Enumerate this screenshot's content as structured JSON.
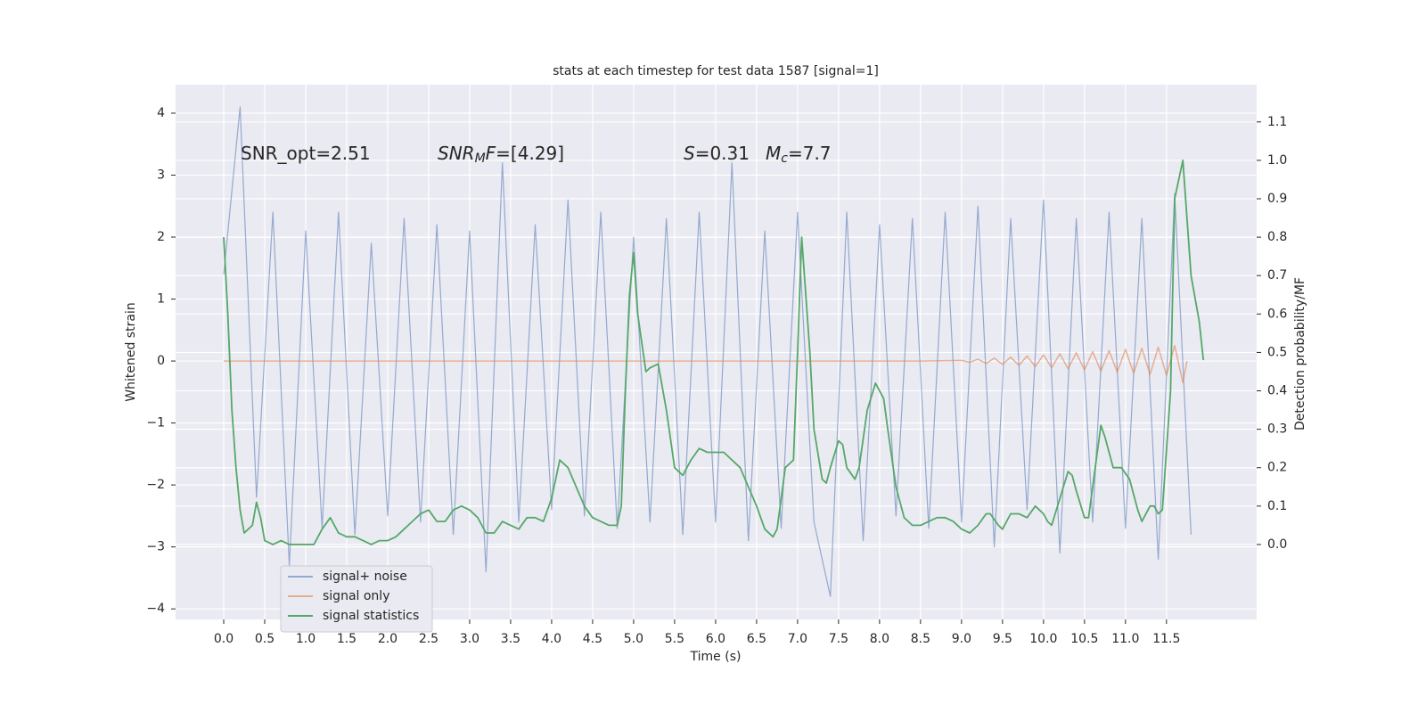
{
  "chart_data": {
    "type": "line",
    "title": "stats at each timestep for test data 1587 [signal=1]",
    "xlabel": "Time (s)",
    "ylabel": "Whitened strain",
    "y2label": "Detection probability/MF",
    "xlim": [
      -0.587,
      12.6
    ],
    "ylim": [
      -4.17,
      4.46
    ],
    "y2lim": [
      -0.195,
      1.197
    ],
    "xticks": [
      {
        "value": 0,
        "label": "0.0"
      },
      0.5,
      {
        "value": 1,
        "label": "1.0"
      },
      1.5,
      {
        "value": 2,
        "label": "2.0"
      },
      2.5,
      {
        "value": 3,
        "label": "3.0"
      },
      3.5,
      {
        "value": 4,
        "label": "4.0"
      },
      4.5,
      {
        "value": 5,
        "label": "5.0"
      },
      5.5,
      {
        "value": 6,
        "label": "6.0"
      },
      6.5,
      {
        "value": 7,
        "label": "7.0"
      },
      7.5,
      {
        "value": 8,
        "label": "8.0"
      },
      8.5,
      {
        "value": 9,
        "label": "9.0"
      },
      9.5,
      {
        "value": 10,
        "label": "10.0"
      },
      10.5,
      {
        "value": 11,
        "label": "11.0"
      },
      11.5
    ],
    "yticks": [
      {
        "value": -4,
        "label": "−4"
      },
      {
        "value": -3,
        "label": "−3"
      },
      {
        "value": -2,
        "label": "−2"
      },
      {
        "value": -1,
        "label": "−1"
      },
      0,
      1,
      2,
      3,
      4
    ],
    "y2ticks": [
      {
        "value": 0,
        "label": "0.0"
      },
      0.1,
      0.2,
      0.3,
      0.4,
      0.5,
      0.6,
      0.7,
      0.8,
      0.9,
      {
        "value": 1,
        "label": "1.0"
      },
      1.1
    ],
    "grid": true,
    "legend": "lower left",
    "annotations": [
      {
        "parts": [
          "SNR_opt=2.51"
        ]
      },
      {
        "parts": [
          "SNR",
          "M",
          "F",
          "=[4.29]"
        ]
      },
      {
        "parts": [
          "S",
          "=0.31"
        ]
      },
      {
        "parts": [
          "M",
          "c",
          "=7.7"
        ]
      }
    ],
    "series": [
      {
        "name": "signal+ noise",
        "color": "#4c72b0",
        "x": [
          0.0,
          0.2,
          0.4,
          0.6,
          0.8,
          1.0,
          1.2,
          1.4,
          1.6,
          1.8,
          2.0,
          2.2,
          2.4,
          2.6,
          2.8,
          3.0,
          3.2,
          3.4,
          3.6,
          3.8,
          4.0,
          4.2,
          4.4,
          4.6,
          4.8,
          5.0,
          5.2,
          5.4,
          5.6,
          5.8,
          6.0,
          6.2,
          6.4,
          6.6,
          6.8,
          7.0,
          7.2,
          7.4,
          7.6,
          7.8,
          8.0,
          8.2,
          8.4,
          8.6,
          8.8,
          9.0,
          9.2,
          9.4,
          9.6,
          9.8,
          10.0,
          10.2,
          10.4,
          10.6,
          10.8,
          11.0,
          11.2,
          11.4,
          11.6,
          11.8
        ],
        "values": [
          1.4,
          4.1,
          -2.2,
          2.4,
          -3.3,
          2.1,
          -2.7,
          2.4,
          -2.8,
          1.9,
          -2.5,
          2.3,
          -2.6,
          2.2,
          -2.8,
          2.1,
          -3.4,
          3.2,
          -2.6,
          2.2,
          -2.4,
          2.6,
          -2.5,
          2.4,
          -2.7,
          2.0,
          -2.6,
          2.3,
          -2.8,
          2.4,
          -2.6,
          3.2,
          -2.9,
          2.1,
          -2.7,
          2.4,
          -2.6,
          -3.8,
          2.4,
          -2.9,
          2.2,
          -2.5,
          2.3,
          -2.7,
          2.4,
          -2.6,
          2.5,
          -3.0,
          2.3,
          -2.4,
          2.6,
          -3.1,
          2.3,
          -2.6,
          2.4,
          -2.7,
          2.3,
          -3.2,
          2.7,
          -2.8
        ]
      },
      {
        "name": "signal only",
        "color": "#dd8452",
        "x": [
          0,
          3,
          6,
          8.5,
          9.0,
          9.1,
          9.2,
          9.3,
          9.4,
          9.5,
          9.6,
          9.7,
          9.8,
          9.9,
          10.0,
          10.1,
          10.2,
          10.3,
          10.4,
          10.5,
          10.6,
          10.7,
          10.8,
          10.9,
          11.0,
          11.1,
          11.2,
          11.3,
          11.4,
          11.5,
          11.6,
          11.7,
          11.75
        ],
        "values": [
          0,
          0,
          0,
          0,
          0.01,
          -0.019,
          0.028,
          -0.037,
          0.046,
          -0.054,
          0.063,
          -0.072,
          0.081,
          -0.09,
          0.099,
          -0.108,
          0.117,
          -0.126,
          0.134,
          -0.143,
          0.152,
          -0.161,
          0.17,
          -0.179,
          0.188,
          -0.197,
          0.206,
          -0.214,
          0.223,
          -0.232,
          0.25,
          -0.35,
          0
        ]
      },
      {
        "name": "signal statistics",
        "color": "#55a868",
        "axis": "y2",
        "x": [
          0.0,
          0.05,
          0.1,
          0.15,
          0.2,
          0.25,
          0.3,
          0.35,
          0.4,
          0.45,
          0.5,
          0.6,
          0.7,
          0.8,
          0.9,
          1.0,
          1.1,
          1.2,
          1.3,
          1.4,
          1.5,
          1.6,
          1.7,
          1.8,
          1.9,
          2.0,
          2.1,
          2.2,
          2.3,
          2.4,
          2.5,
          2.6,
          2.7,
          2.8,
          2.9,
          3.0,
          3.1,
          3.2,
          3.3,
          3.4,
          3.5,
          3.6,
          3.7,
          3.8,
          3.9,
          4.0,
          4.1,
          4.2,
          4.3,
          4.4,
          4.5,
          4.6,
          4.7,
          4.8,
          4.85,
          4.9,
          4.95,
          5.0,
          5.05,
          5.15,
          5.2,
          5.3,
          5.4,
          5.5,
          5.6,
          5.7,
          5.8,
          5.9,
          6.0,
          6.1,
          6.2,
          6.3,
          6.4,
          6.5,
          6.6,
          6.7,
          6.75,
          6.85,
          6.95,
          7.0,
          7.05,
          7.15,
          7.2,
          7.3,
          7.35,
          7.4,
          7.5,
          7.55,
          7.6,
          7.7,
          7.75,
          7.85,
          7.95,
          8.05,
          8.1,
          8.2,
          8.3,
          8.4,
          8.5,
          8.6,
          8.7,
          8.8,
          8.9,
          9.0,
          9.1,
          9.2,
          9.3,
          9.35,
          9.45,
          9.5,
          9.6,
          9.7,
          9.8,
          9.9,
          10.0,
          10.05,
          10.1,
          10.2,
          10.3,
          10.35,
          10.4,
          10.5,
          10.55,
          10.6,
          10.7,
          10.75,
          10.85,
          10.95,
          11.05,
          11.15,
          11.2,
          11.3,
          11.35,
          11.4,
          11.45,
          11.55,
          11.6,
          11.7,
          11.8,
          11.9,
          11.95
        ],
        "values": [
          0.8,
          0.6,
          0.35,
          0.2,
          0.09,
          0.03,
          0.04,
          0.05,
          0.11,
          0.07,
          0.01,
          0.0,
          0.01,
          0.0,
          0.0,
          0.0,
          0.0,
          0.04,
          0.07,
          0.03,
          0.02,
          0.02,
          0.01,
          0.0,
          0.01,
          0.01,
          0.02,
          0.04,
          0.06,
          0.08,
          0.09,
          0.06,
          0.06,
          0.09,
          0.1,
          0.09,
          0.07,
          0.03,
          0.03,
          0.06,
          0.05,
          0.04,
          0.07,
          0.07,
          0.06,
          0.12,
          0.22,
          0.2,
          0.15,
          0.1,
          0.07,
          0.06,
          0.05,
          0.05,
          0.1,
          0.4,
          0.65,
          0.76,
          0.6,
          0.45,
          0.46,
          0.47,
          0.35,
          0.2,
          0.18,
          0.22,
          0.25,
          0.24,
          0.24,
          0.24,
          0.22,
          0.2,
          0.15,
          0.1,
          0.04,
          0.02,
          0.04,
          0.2,
          0.22,
          0.5,
          0.8,
          0.5,
          0.3,
          0.17,
          0.16,
          0.2,
          0.27,
          0.26,
          0.2,
          0.17,
          0.2,
          0.35,
          0.42,
          0.38,
          0.3,
          0.15,
          0.07,
          0.05,
          0.05,
          0.06,
          0.07,
          0.07,
          0.06,
          0.04,
          0.03,
          0.05,
          0.08,
          0.08,
          0.05,
          0.04,
          0.08,
          0.08,
          0.07,
          0.1,
          0.08,
          0.06,
          0.05,
          0.12,
          0.19,
          0.18,
          0.14,
          0.07,
          0.07,
          0.15,
          0.31,
          0.28,
          0.2,
          0.2,
          0.17,
          0.09,
          0.06,
          0.1,
          0.1,
          0.08,
          0.09,
          0.4,
          0.9,
          1.0,
          0.7,
          0.58,
          0.48
        ]
      }
    ]
  }
}
